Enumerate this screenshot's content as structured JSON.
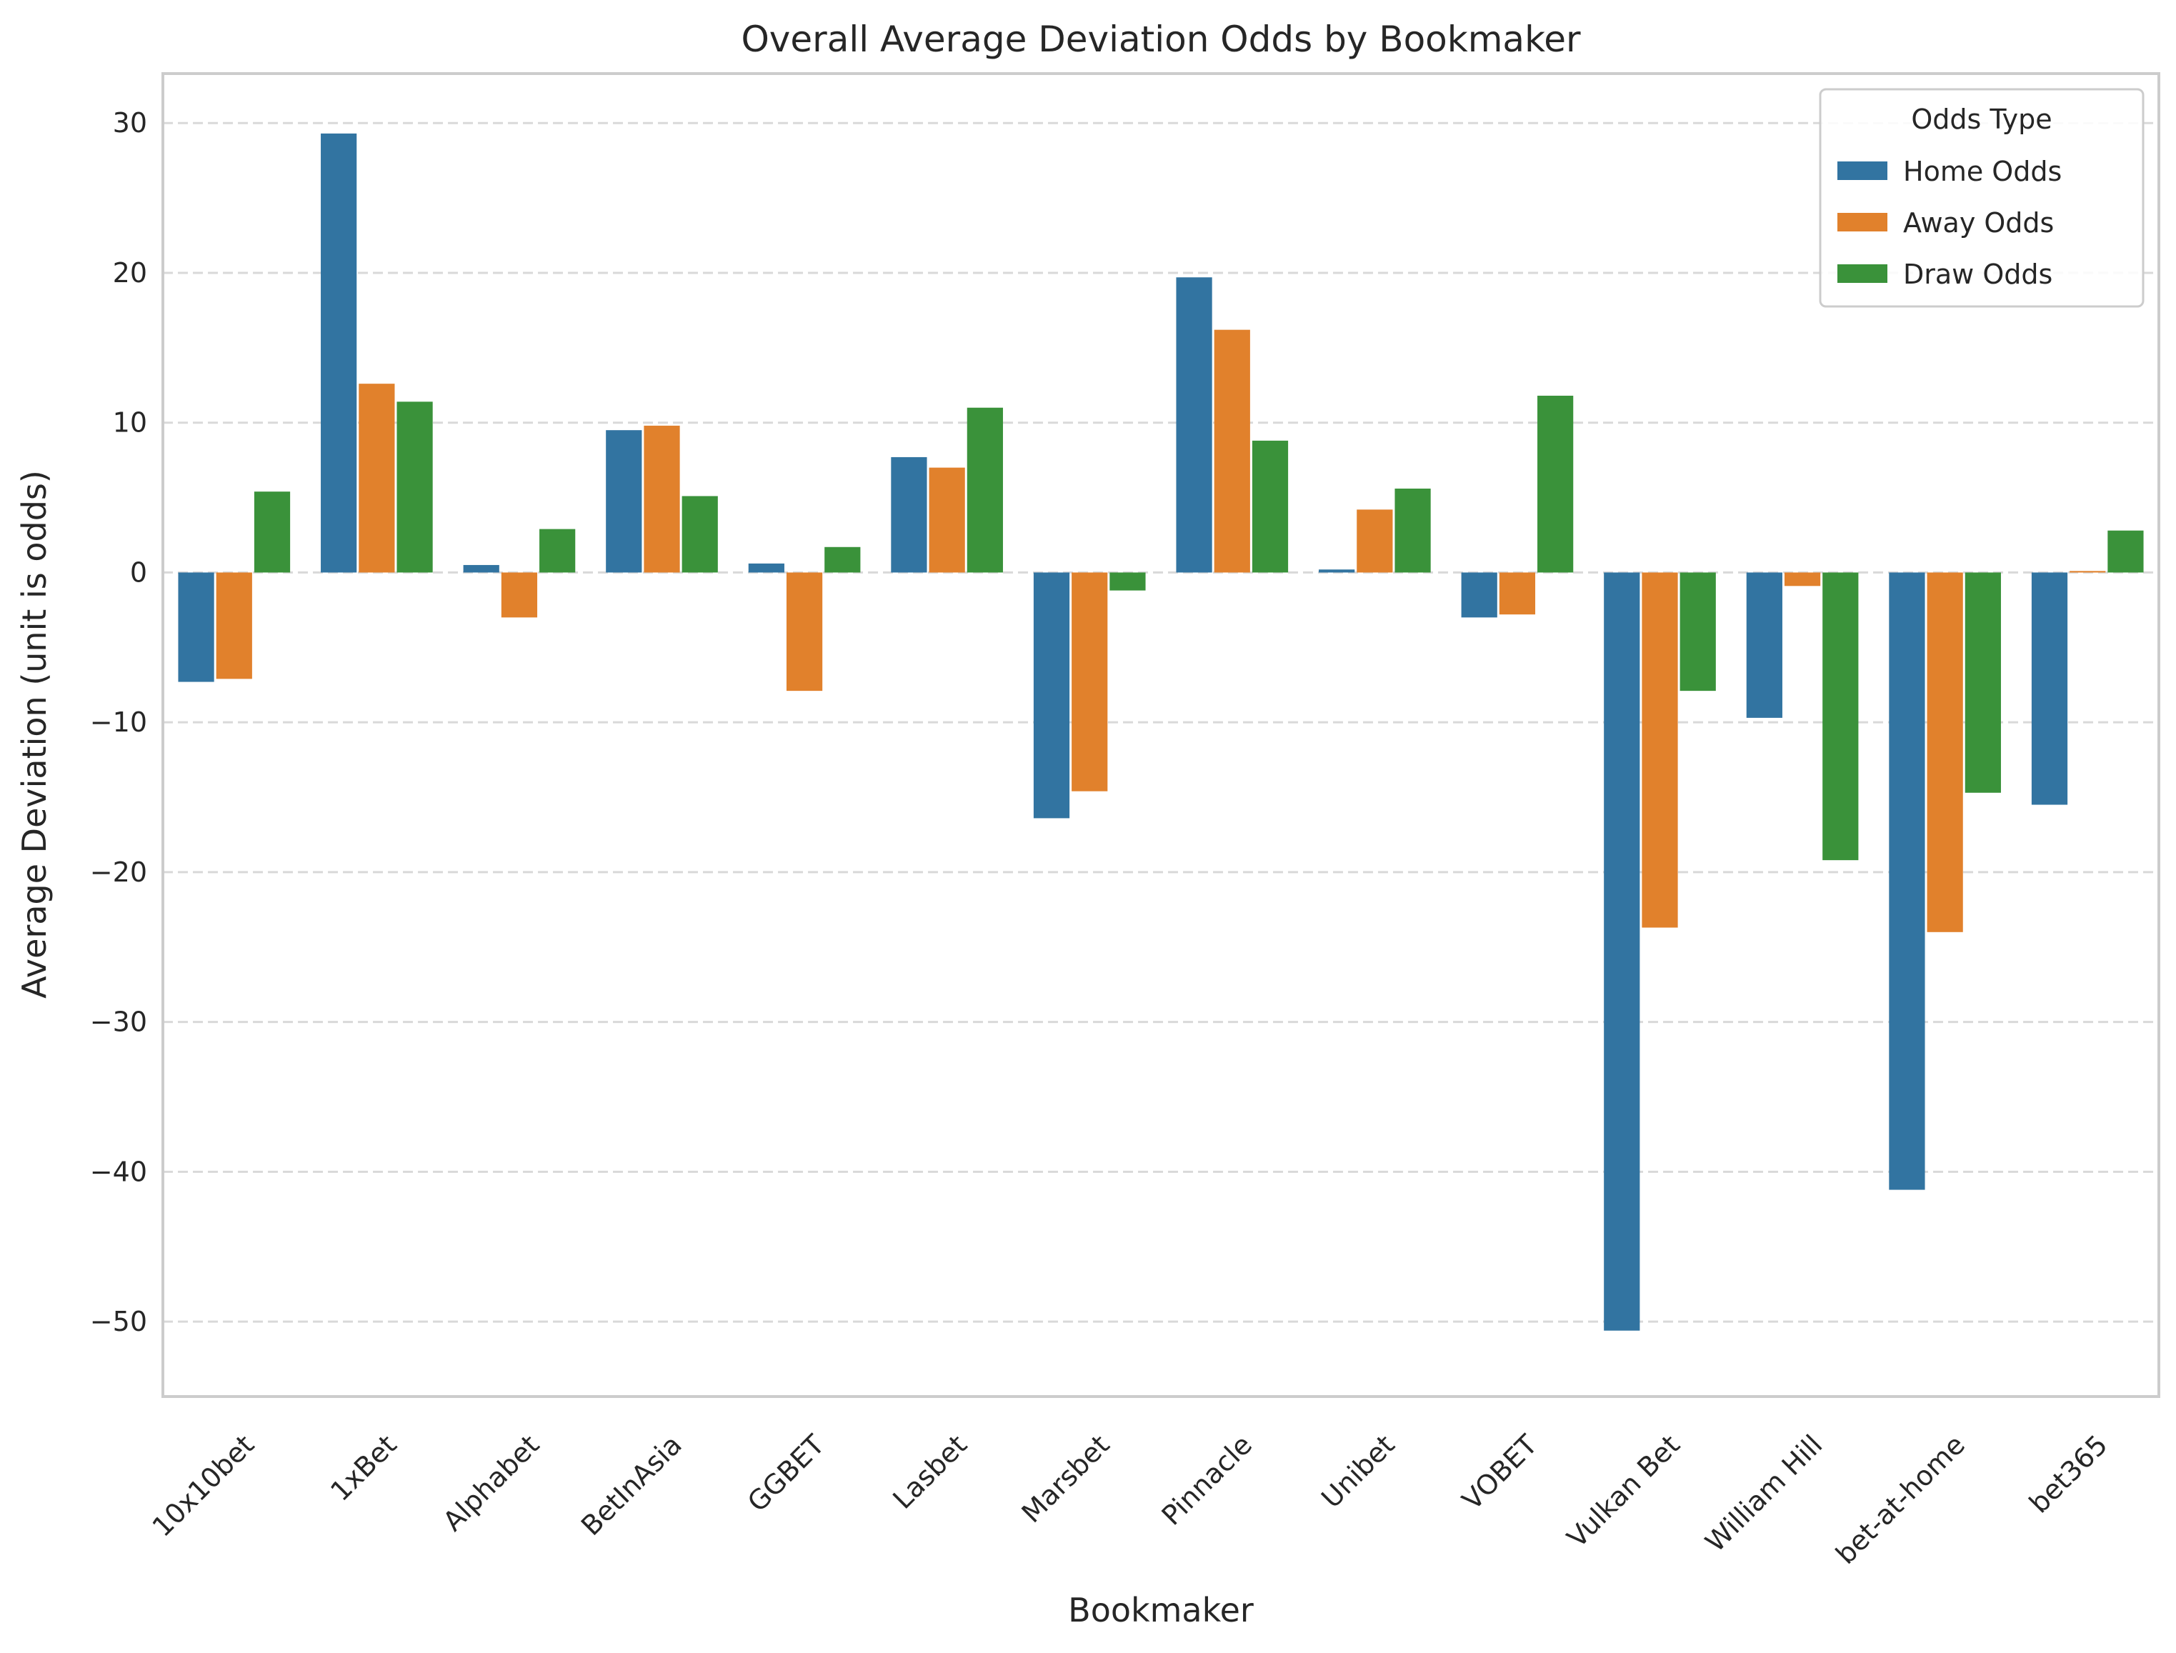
{
  "chart_data": {
    "type": "bar",
    "title": "Overall Average Deviation Odds by Bookmaker",
    "xlabel": "Bookmaker",
    "ylabel": "Average Deviation (unit is odds)",
    "categories": [
      "10x10bet",
      "1xBet",
      "Alphabet",
      "BetInAsia",
      "GGBET",
      "Lasbet",
      "Marsbet",
      "Pinnacle",
      "Unibet",
      "VOBET",
      "Vulkan Bet",
      "William Hill",
      "bet-at-home",
      "bet365"
    ],
    "series": [
      {
        "name": "Home Odds",
        "color": "#3274a1",
        "values": [
          -7.3,
          29.3,
          0.5,
          9.5,
          0.6,
          7.7,
          -16.4,
          19.7,
          0.2,
          -3.0,
          -50.6,
          -9.7,
          -41.2,
          -15.5
        ]
      },
      {
        "name": "Away Odds",
        "color": "#e1812c",
        "values": [
          -7.1,
          12.6,
          -3.0,
          9.8,
          -7.9,
          7.0,
          -14.6,
          16.2,
          4.2,
          -2.8,
          -23.7,
          -0.9,
          -24.0,
          0.1
        ]
      },
      {
        "name": "Draw Odds",
        "color": "#3a923a",
        "values": [
          5.4,
          11.4,
          2.9,
          5.1,
          1.7,
          11.0,
          -1.2,
          8.8,
          5.6,
          11.8,
          -7.9,
          -19.2,
          -14.7,
          2.8
        ]
      }
    ],
    "ylim": [
      -55,
      33.3
    ],
    "yticks": [
      30,
      20,
      10,
      0,
      -10,
      -20,
      -30,
      -40,
      -50
    ],
    "ytick_labels": [
      "30",
      "20",
      "10",
      "0",
      "−10",
      "−20",
      "−30",
      "−40",
      "−50"
    ],
    "grid": "y dashed",
    "legend": {
      "title": "Odds Type",
      "placement": "top-right"
    }
  }
}
